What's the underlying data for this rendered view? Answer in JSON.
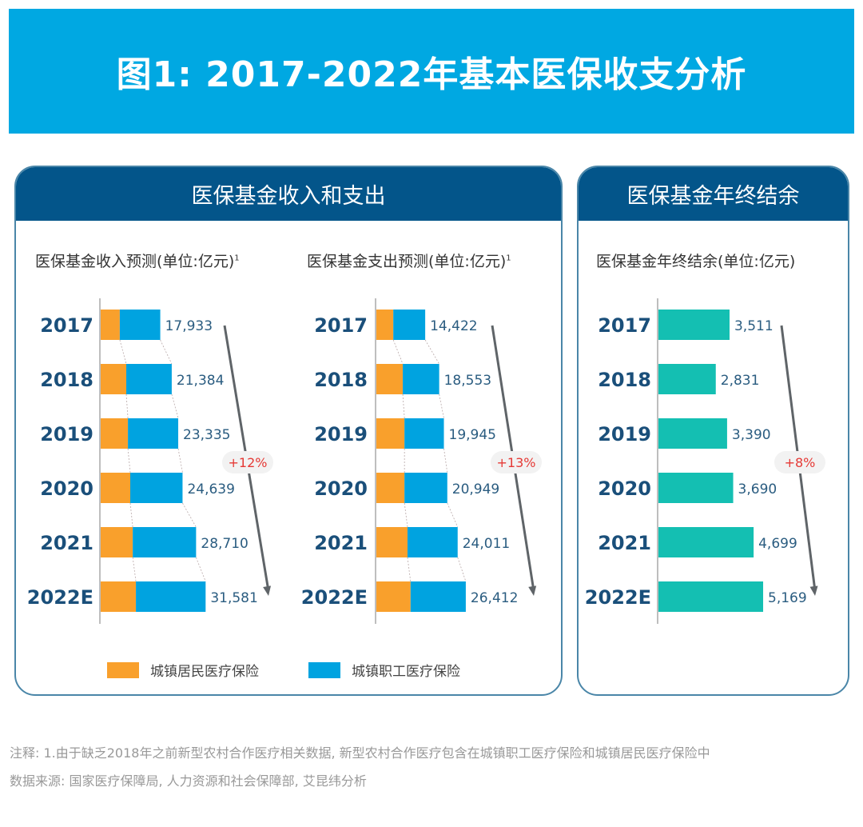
{
  "title": "图1: 2017-2022年基本医保收支分析",
  "left_panel": {
    "header": "医保基金收入和支出",
    "legend": [
      {
        "label": "城镇居民医疗保险",
        "color": "#F9A02C"
      },
      {
        "label": "城镇职工医疗保险",
        "color": "#00A3E0"
      }
    ]
  },
  "right_panel": {
    "header": "医保基金年终结余"
  },
  "chart_data": [
    {
      "type": "bar",
      "orientation": "horizontal",
      "stacked": true,
      "title": "医保基金收入预测(单位:亿元)",
      "title_sup": "1",
      "categories": [
        "2017",
        "2018",
        "2019",
        "2020",
        "2021",
        "2022E"
      ],
      "totals": [
        17933,
        21384,
        23335,
        24639,
        28710,
        31581
      ],
      "total_labels": [
        "17,933",
        "21,384",
        "23,335",
        "24,639",
        "28,710",
        "31,581"
      ],
      "series": [
        {
          "name": "城镇居民医疗保险",
          "color": "#F9A02C",
          "values": [
            5750,
            7700,
            8200,
            8900,
            9650,
            10600
          ]
        },
        {
          "name": "城镇职工医疗保险",
          "color": "#00A3E0",
          "values": [
            12183,
            13684,
            15135,
            15739,
            19060,
            20981
          ]
        }
      ],
      "growth_annotation": "+12%",
      "xlim": [
        0,
        31581
      ]
    },
    {
      "type": "bar",
      "orientation": "horizontal",
      "stacked": true,
      "title": "医保基金支出预测(单位:亿元)",
      "title_sup": "1",
      "categories": [
        "2017",
        "2018",
        "2019",
        "2020",
        "2021",
        "2022E"
      ],
      "totals": [
        14422,
        18553,
        19945,
        20949,
        24011,
        26412
      ],
      "total_labels": [
        "14,422",
        "18,553",
        "19,945",
        "20,949",
        "24,011",
        "26,412"
      ],
      "series": [
        {
          "name": "城镇居民医疗保险",
          "color": "#F9A02C",
          "values": [
            5000,
            7800,
            8300,
            8300,
            9200,
            10100
          ]
        },
        {
          "name": "城镇职工医疗保险",
          "color": "#00A3E0",
          "values": [
            9422,
            10753,
            11645,
            12649,
            14811,
            16312
          ]
        }
      ],
      "growth_annotation": "+13%",
      "xlim": [
        0,
        26412
      ]
    },
    {
      "type": "bar",
      "orientation": "horizontal",
      "stacked": false,
      "title": "医保基金年终结余(单位:亿元)",
      "title_sup": "",
      "categories": [
        "2017",
        "2018",
        "2019",
        "2020",
        "2021",
        "2022E"
      ],
      "totals": [
        3511,
        2831,
        3390,
        3690,
        4699,
        5169
      ],
      "total_labels": [
        "3,511",
        "2,831",
        "3,390",
        "3,690",
        "4,699",
        "5,169"
      ],
      "series": [
        {
          "name": "医保基金年终结余",
          "color": "#14BFB2",
          "values": [
            3511,
            2831,
            3390,
            3690,
            4699,
            5169
          ]
        }
      ],
      "growth_annotation": "+8%",
      "xlim": [
        0,
        5169
      ]
    }
  ],
  "notes": {
    "annotation": "注释: 1.由于缺乏2018年之前新型农村合作医疗相关数据, 新型农村合作医疗包含在城镇职工医疗保险和城镇居民医疗保险中",
    "source": "数据来源: 国家医疗保障局, 人力资源和社会保障部, 艾昆纬分析"
  },
  "colors": {
    "banner": "#00A8E2",
    "panel_header": "#03558A",
    "panel_border": "#4A86A8",
    "year_label": "#1A4F7A",
    "value_label": "#2A5C80",
    "growth_text": "#E53935"
  }
}
